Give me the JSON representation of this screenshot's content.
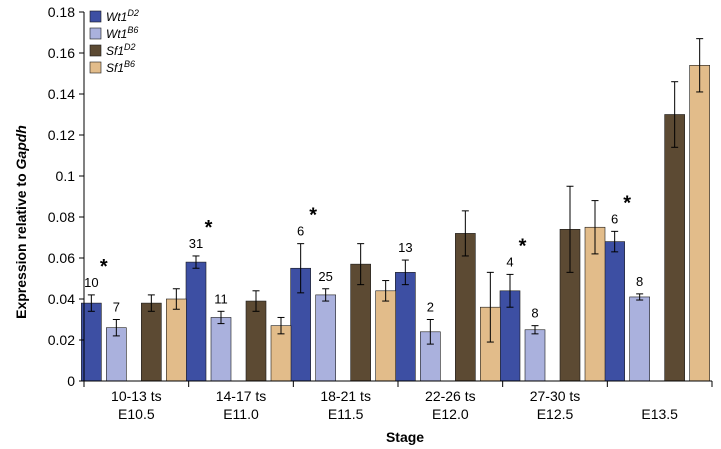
{
  "chart_data": {
    "type": "bar",
    "xlabel": "Stage",
    "ylabel_prefix": "Expression relative to ",
    "ylabel_gene": "Gapdh",
    "ylim": [
      0,
      0.18
    ],
    "yticks": [
      "0",
      "0.02",
      "0.04",
      "0.06",
      "0.08",
      "0.1",
      "0.12",
      "0.14",
      "0.16",
      "0.18"
    ],
    "grid": false,
    "legend_position": "top-left",
    "categories": [
      {
        "line1": "10-13 ts",
        "line2": "E10.5"
      },
      {
        "line1": "14-17 ts",
        "line2": "E11.0"
      },
      {
        "line1": "18-21 ts",
        "line2": "E11.5"
      },
      {
        "line1": "22-26 ts",
        "line2": "E12.0"
      },
      {
        "line1": "27-30 ts",
        "line2": "E12.5"
      },
      {
        "line1": "",
        "line2": "E13.5"
      }
    ],
    "series": [
      {
        "gene": "Wt1",
        "strain": "D2",
        "color": "#3d4fa3",
        "values": [
          0.038,
          0.058,
          0.055,
          0.053,
          0.044,
          0.068
        ],
        "errors": [
          0.004,
          0.003,
          0.012,
          0.006,
          0.008,
          0.005
        ]
      },
      {
        "gene": "Wt1",
        "strain": "B6",
        "color": "#aab1dd",
        "values": [
          0.026,
          0.031,
          0.042,
          0.024,
          0.025,
          0.041
        ],
        "errors": [
          0.004,
          0.003,
          0.003,
          0.006,
          0.002,
          0.0015
        ]
      },
      {
        "gene": "Sf1",
        "strain": "D2",
        "color": "#5c4a33",
        "values": [
          0.038,
          0.039,
          0.057,
          0.072,
          0.074,
          0.13
        ],
        "errors": [
          0.004,
          0.005,
          0.01,
          0.011,
          0.021,
          0.016
        ]
      },
      {
        "gene": "Sf1",
        "strain": "B6",
        "color": "#e2bc8a",
        "values": [
          0.04,
          0.027,
          0.044,
          0.036,
          0.075,
          0.154
        ],
        "errors": [
          0.005,
          0.004,
          0.005,
          0.017,
          0.013,
          0.013
        ]
      }
    ],
    "annotations": [
      {
        "category": 0,
        "series": 0,
        "text": "10"
      },
      {
        "category": 0,
        "series": 1,
        "text": "7"
      },
      {
        "category": 1,
        "series": 0,
        "text": "31"
      },
      {
        "category": 1,
        "series": 1,
        "text": "11"
      },
      {
        "category": 2,
        "series": 0,
        "text": "6"
      },
      {
        "category": 2,
        "series": 1,
        "text": "25"
      },
      {
        "category": 3,
        "series": 0,
        "text": "13"
      },
      {
        "category": 3,
        "series": 1,
        "text": "2"
      },
      {
        "category": 4,
        "series": 0,
        "text": "4"
      },
      {
        "category": 4,
        "series": 1,
        "text": "8"
      },
      {
        "category": 5,
        "series": 0,
        "text": "6"
      },
      {
        "category": 5,
        "series": 1,
        "text": "8"
      }
    ],
    "significance": [
      {
        "category": 0,
        "text": "*"
      },
      {
        "category": 1,
        "text": "*"
      },
      {
        "category": 2,
        "text": "*"
      },
      {
        "category": 4,
        "text": "*"
      },
      {
        "category": 5,
        "text": "*"
      }
    ]
  }
}
